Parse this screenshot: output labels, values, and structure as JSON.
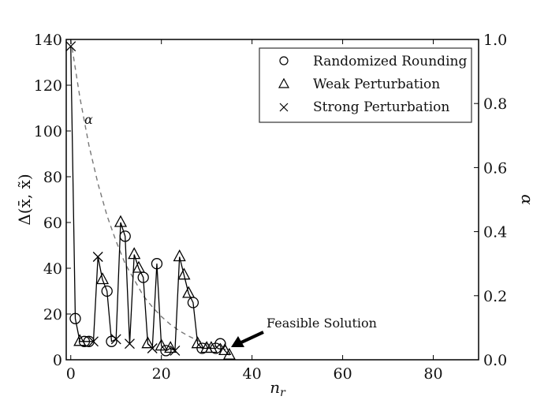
{
  "chart_data": {
    "type": "line",
    "title": "",
    "xlabel": "n_r",
    "ylabel": "Δ(x̄, x̃)",
    "ylabel_right": "α",
    "xlim": [
      -1,
      90
    ],
    "ylim": [
      0,
      140
    ],
    "ylim_right": [
      0.0,
      1.0
    ],
    "x_ticks": [
      "0",
      "20",
      "40",
      "60",
      "80"
    ],
    "y_ticks": [
      "0",
      "20",
      "40",
      "60",
      "80",
      "100",
      "120",
      "140"
    ],
    "y_ticks_right": [
      "0.0",
      "0.2",
      "0.4",
      "0.6",
      "0.8",
      "1.0"
    ],
    "grid": false,
    "legend_position": "upper right",
    "legend": [
      {
        "marker": "circle",
        "label": "Randomized Rounding"
      },
      {
        "marker": "triangle",
        "label": "Weak Perturbation"
      },
      {
        "marker": "x",
        "label": "Strong Perturbation"
      }
    ],
    "series": [
      {
        "name": "Δ(x̄, x̃)",
        "axis": "left",
        "style": "solid",
        "x": [
          0,
          1,
          2,
          3,
          4,
          5,
          6,
          7,
          8,
          9,
          10,
          11,
          12,
          13,
          14,
          15,
          16,
          17,
          18,
          19,
          20,
          21,
          22,
          23,
          24,
          25,
          26,
          27,
          28,
          29,
          30,
          31,
          32,
          33,
          34,
          35
        ],
        "values": [
          137,
          18,
          8,
          8,
          8,
          8,
          45,
          35,
          30,
          8,
          9,
          60,
          54,
          7,
          46,
          40,
          36,
          7,
          5,
          42,
          6,
          4,
          5,
          4,
          45,
          37,
          29,
          25,
          7,
          5,
          5,
          5,
          5,
          7,
          4,
          2
        ],
        "markers": [
          "x",
          "o",
          "^",
          "o",
          "o",
          "x",
          "x",
          "^",
          "o",
          "o",
          "x",
          "^",
          "o",
          "x",
          "^",
          "^",
          "o",
          "^",
          "x",
          "o",
          "^",
          "o",
          "^",
          "x",
          "^",
          "^",
          "^",
          "o",
          "^",
          "o",
          "^",
          "^",
          "o",
          "o",
          "^",
          "^"
        ]
      },
      {
        "name": "α",
        "axis": "right",
        "style": "dashed",
        "x": [
          0,
          2,
          4,
          6,
          8,
          10,
          12,
          14,
          16,
          18,
          20,
          22,
          24,
          26,
          28,
          30,
          32,
          34,
          35
        ],
        "values": [
          1.0,
          0.82,
          0.67,
          0.55,
          0.45,
          0.37,
          0.3,
          0.25,
          0.2,
          0.165,
          0.135,
          0.11,
          0.09,
          0.074,
          0.06,
          0.05,
          0.041,
          0.033,
          0.03
        ]
      }
    ],
    "annotations": [
      {
        "text": "α",
        "near_x": 4,
        "near_y": 106
      },
      {
        "text": "Feasible Solution",
        "arrow_to_x": 35,
        "arrow_to_y": 2
      }
    ]
  }
}
